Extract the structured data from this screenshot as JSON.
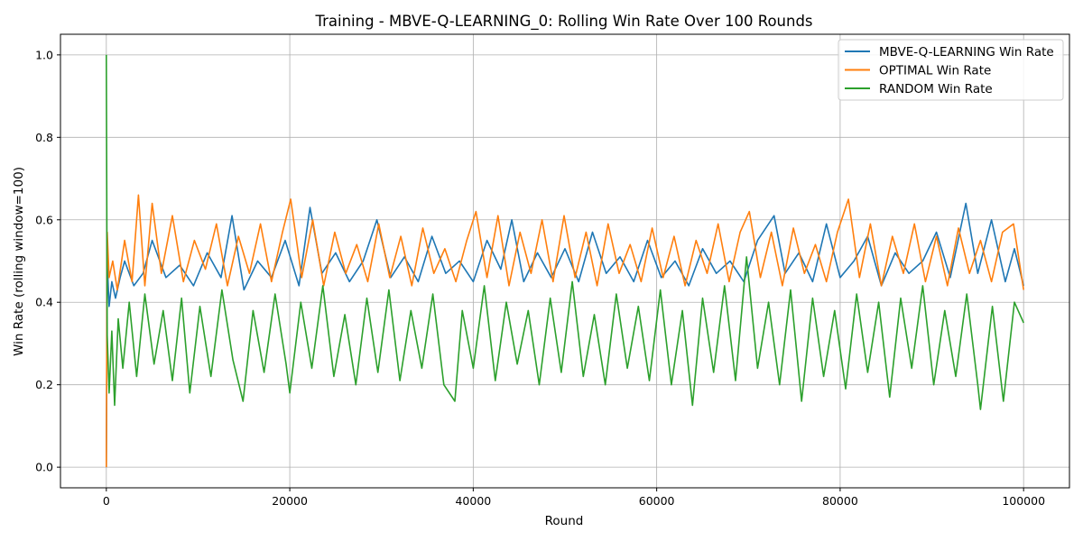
{
  "colors": {
    "mbve": "#1f77b4",
    "optimal": "#ff7f0e",
    "random": "#2ca02c",
    "grid": "#b0b0b0",
    "axis": "#000000"
  },
  "chart_data": {
    "type": "line",
    "title": "Training - MBVE-Q-LEARNING_0: Rolling Win Rate Over 100 Rounds",
    "xlabel": "Round",
    "ylabel": "Win Rate (rolling window=100)",
    "xlim": [
      -5000,
      105000
    ],
    "ylim": [
      -0.05,
      1.05
    ],
    "xticks": [
      0,
      20000,
      40000,
      60000,
      80000,
      100000
    ],
    "xtick_labels": [
      "0",
      "20000",
      "40000",
      "60000",
      "80000",
      "100000"
    ],
    "yticks": [
      0.0,
      0.2,
      0.4,
      0.6,
      0.8,
      1.0
    ],
    "ytick_labels": [
      "0.0",
      "0.2",
      "0.4",
      "0.6",
      "0.8",
      "1.0"
    ],
    "grid": true,
    "legend_position": "top-right",
    "series": [
      {
        "name": "MBVE-Q-LEARNING Win Rate",
        "color_key": "mbve",
        "x": [
          0,
          100,
          300,
          600,
          1000,
          1500,
          2000,
          3000,
          4000,
          5000,
          6500,
          8000,
          9500,
          11000,
          12500,
          13700,
          15000,
          16500,
          18000,
          19500,
          21000,
          22200,
          23500,
          25000,
          26500,
          28000,
          29500,
          31000,
          32500,
          34000,
          35500,
          37000,
          38500,
          40000,
          41500,
          43000,
          44200,
          45500,
          47000,
          48500,
          50000,
          51500,
          53000,
          54500,
          56000,
          57500,
          59000,
          60500,
          62000,
          63500,
          65000,
          66500,
          68000,
          69500,
          71000,
          72800,
          74000,
          75500,
          77000,
          78500,
          80000,
          81500,
          83000,
          84500,
          86000,
          87500,
          89000,
          90500,
          92000,
          93700,
          95000,
          96500,
          98000,
          99000,
          100000
        ],
        "y": [
          0.0,
          0.5,
          0.39,
          0.45,
          0.41,
          0.46,
          0.5,
          0.44,
          0.47,
          0.55,
          0.46,
          0.49,
          0.44,
          0.52,
          0.46,
          0.61,
          0.43,
          0.5,
          0.46,
          0.55,
          0.44,
          0.63,
          0.47,
          0.52,
          0.45,
          0.5,
          0.6,
          0.46,
          0.51,
          0.45,
          0.56,
          0.47,
          0.5,
          0.45,
          0.55,
          0.48,
          0.6,
          0.45,
          0.52,
          0.46,
          0.53,
          0.45,
          0.57,
          0.47,
          0.51,
          0.45,
          0.55,
          0.46,
          0.5,
          0.44,
          0.53,
          0.47,
          0.5,
          0.45,
          0.55,
          0.61,
          0.47,
          0.52,
          0.45,
          0.59,
          0.46,
          0.5,
          0.56,
          0.44,
          0.52,
          0.47,
          0.5,
          0.57,
          0.46,
          0.64,
          0.47,
          0.6,
          0.45,
          0.53,
          0.44
        ]
      },
      {
        "name": "OPTIMAL Win Rate",
        "color_key": "optimal",
        "x": [
          0,
          100,
          300,
          700,
          1200,
          2000,
          2800,
          3500,
          4200,
          5000,
          6000,
          7200,
          8400,
          9600,
          10800,
          12000,
          13200,
          14400,
          15600,
          16800,
          18000,
          19200,
          20100,
          21300,
          22500,
          23700,
          24900,
          26100,
          27300,
          28500,
          29700,
          30900,
          32100,
          33300,
          34500,
          35700,
          36900,
          38100,
          39300,
          40300,
          41500,
          42700,
          43900,
          45100,
          46300,
          47500,
          48700,
          49900,
          51100,
          52300,
          53500,
          54700,
          55900,
          57100,
          58300,
          59500,
          60700,
          61900,
          63100,
          64300,
          65500,
          66700,
          67900,
          69100,
          70100,
          71300,
          72500,
          73700,
          74900,
          76100,
          77300,
          78500,
          79700,
          80900,
          82100,
          83300,
          84500,
          85700,
          86900,
          88100,
          89300,
          90500,
          91700,
          92900,
          94100,
          95300,
          96500,
          97700,
          98900,
          100000
        ],
        "y": [
          0.0,
          0.57,
          0.46,
          0.5,
          0.43,
          0.55,
          0.45,
          0.66,
          0.44,
          0.64,
          0.47,
          0.61,
          0.45,
          0.55,
          0.48,
          0.59,
          0.44,
          0.56,
          0.47,
          0.59,
          0.45,
          0.57,
          0.65,
          0.46,
          0.6,
          0.44,
          0.57,
          0.47,
          0.54,
          0.45,
          0.59,
          0.46,
          0.56,
          0.44,
          0.58,
          0.47,
          0.53,
          0.45,
          0.55,
          0.62,
          0.46,
          0.61,
          0.44,
          0.57,
          0.47,
          0.6,
          0.45,
          0.61,
          0.46,
          0.57,
          0.44,
          0.59,
          0.47,
          0.54,
          0.45,
          0.58,
          0.46,
          0.56,
          0.44,
          0.55,
          0.47,
          0.59,
          0.45,
          0.57,
          0.62,
          0.46,
          0.57,
          0.44,
          0.58,
          0.47,
          0.54,
          0.45,
          0.57,
          0.65,
          0.46,
          0.59,
          0.44,
          0.56,
          0.47,
          0.59,
          0.45,
          0.56,
          0.44,
          0.58,
          0.47,
          0.55,
          0.45,
          0.57,
          0.59,
          0.43
        ]
      },
      {
        "name": "RANDOM Win Rate",
        "color_key": "random",
        "x": [
          0,
          100,
          300,
          600,
          900,
          1300,
          1800,
          2500,
          3300,
          4200,
          5200,
          6200,
          7200,
          8200,
          9100,
          10200,
          11400,
          12600,
          13800,
          14900,
          16000,
          17200,
          18400,
          19600,
          20000,
          21200,
          22400,
          23600,
          24800,
          26000,
          27200,
          28400,
          29600,
          30800,
          32000,
          33200,
          34400,
          35600,
          36800,
          38000,
          38800,
          40000,
          41200,
          42400,
          43600,
          44800,
          46000,
          47200,
          48400,
          49600,
          50800,
          52000,
          53200,
          54400,
          55600,
          56800,
          58000,
          59200,
          60400,
          61600,
          62800,
          63900,
          65000,
          66200,
          67400,
          68600,
          69800,
          71000,
          72200,
          73400,
          74600,
          75800,
          77000,
          78200,
          79400,
          80600,
          81800,
          83000,
          84200,
          85400,
          86600,
          87800,
          89000,
          90200,
          91400,
          92600,
          93800,
          95000,
          95300,
          96600,
          97800,
          99000,
          100000
        ],
        "y": [
          1.0,
          0.32,
          0.18,
          0.33,
          0.15,
          0.36,
          0.24,
          0.4,
          0.22,
          0.42,
          0.25,
          0.38,
          0.21,
          0.41,
          0.18,
          0.39,
          0.22,
          0.43,
          0.26,
          0.16,
          0.38,
          0.23,
          0.42,
          0.25,
          0.18,
          0.4,
          0.24,
          0.44,
          0.22,
          0.37,
          0.2,
          0.41,
          0.23,
          0.43,
          0.21,
          0.38,
          0.24,
          0.42,
          0.2,
          0.16,
          0.38,
          0.24,
          0.44,
          0.21,
          0.4,
          0.25,
          0.38,
          0.2,
          0.41,
          0.23,
          0.45,
          0.22,
          0.37,
          0.2,
          0.42,
          0.24,
          0.39,
          0.21,
          0.43,
          0.2,
          0.38,
          0.15,
          0.41,
          0.23,
          0.44,
          0.21,
          0.51,
          0.24,
          0.4,
          0.2,
          0.43,
          0.16,
          0.41,
          0.22,
          0.38,
          0.19,
          0.42,
          0.23,
          0.4,
          0.17,
          0.41,
          0.24,
          0.44,
          0.2,
          0.38,
          0.22,
          0.42,
          0.2,
          0.14,
          0.39,
          0.16,
          0.4,
          0.35
        ]
      }
    ]
  }
}
